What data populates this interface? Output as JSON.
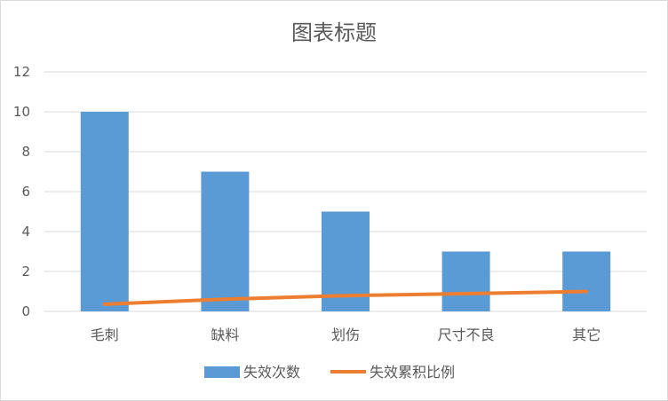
{
  "chart_data": {
    "type": "bar",
    "title": "图表标题",
    "categories": [
      "毛刺",
      "缺料",
      "划伤",
      "尺寸不良",
      "其它"
    ],
    "series": [
      {
        "name": "失效次数",
        "type": "bar",
        "values": [
          10,
          7,
          5,
          3,
          3
        ]
      },
      {
        "name": "失效累积比例",
        "type": "line",
        "values": [
          0.36,
          0.61,
          0.79,
          0.89,
          1.0
        ]
      }
    ],
    "yticks": [
      "0",
      "2",
      "4",
      "6",
      "8",
      "10",
      "12"
    ],
    "ylim": [
      0,
      12
    ],
    "grid": true,
    "legend_position": "bottom",
    "colors": {
      "bar": "#5b9bd5",
      "line": "#ed7d31",
      "grid": "#d9d9d9",
      "text": "#595959"
    }
  }
}
